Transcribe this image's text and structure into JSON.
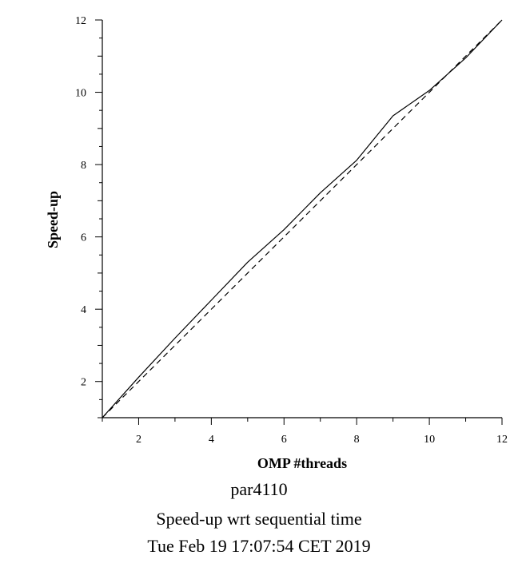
{
  "chart_data": {
    "type": "line",
    "xlabel": "OMP #threads",
    "ylabel": "Speed-up",
    "xlim": [
      1,
      12
    ],
    "ylim": [
      1,
      12
    ],
    "x_ticks": [
      2,
      4,
      6,
      8,
      10,
      12
    ],
    "y_ticks": [
      2,
      4,
      6,
      8,
      10,
      12
    ],
    "x_tick_labels": [
      "2",
      "4",
      "6",
      "8",
      "10",
      "12"
    ],
    "y_tick_labels": [
      "2",
      "4",
      "6",
      "8",
      "10",
      "12"
    ],
    "grid": false,
    "series": [
      {
        "style": "solid",
        "color": "#000000",
        "x": [
          1,
          2,
          3,
          4,
          5,
          6,
          7,
          8,
          9,
          10,
          11,
          12
        ],
        "y": [
          1.0,
          2.12,
          3.2,
          4.25,
          5.3,
          6.2,
          7.22,
          8.12,
          9.35,
          10.05,
          10.95,
          12.0
        ]
      },
      {
        "style": "dashed",
        "color": "#000000",
        "x": [
          1,
          12
        ],
        "y": [
          1,
          12
        ]
      }
    ]
  },
  "caption": {
    "line1": "par4110",
    "line2": "Speed-up wrt sequential time",
    "line3": "Tue Feb 19 17:07:54 CET 2019"
  }
}
